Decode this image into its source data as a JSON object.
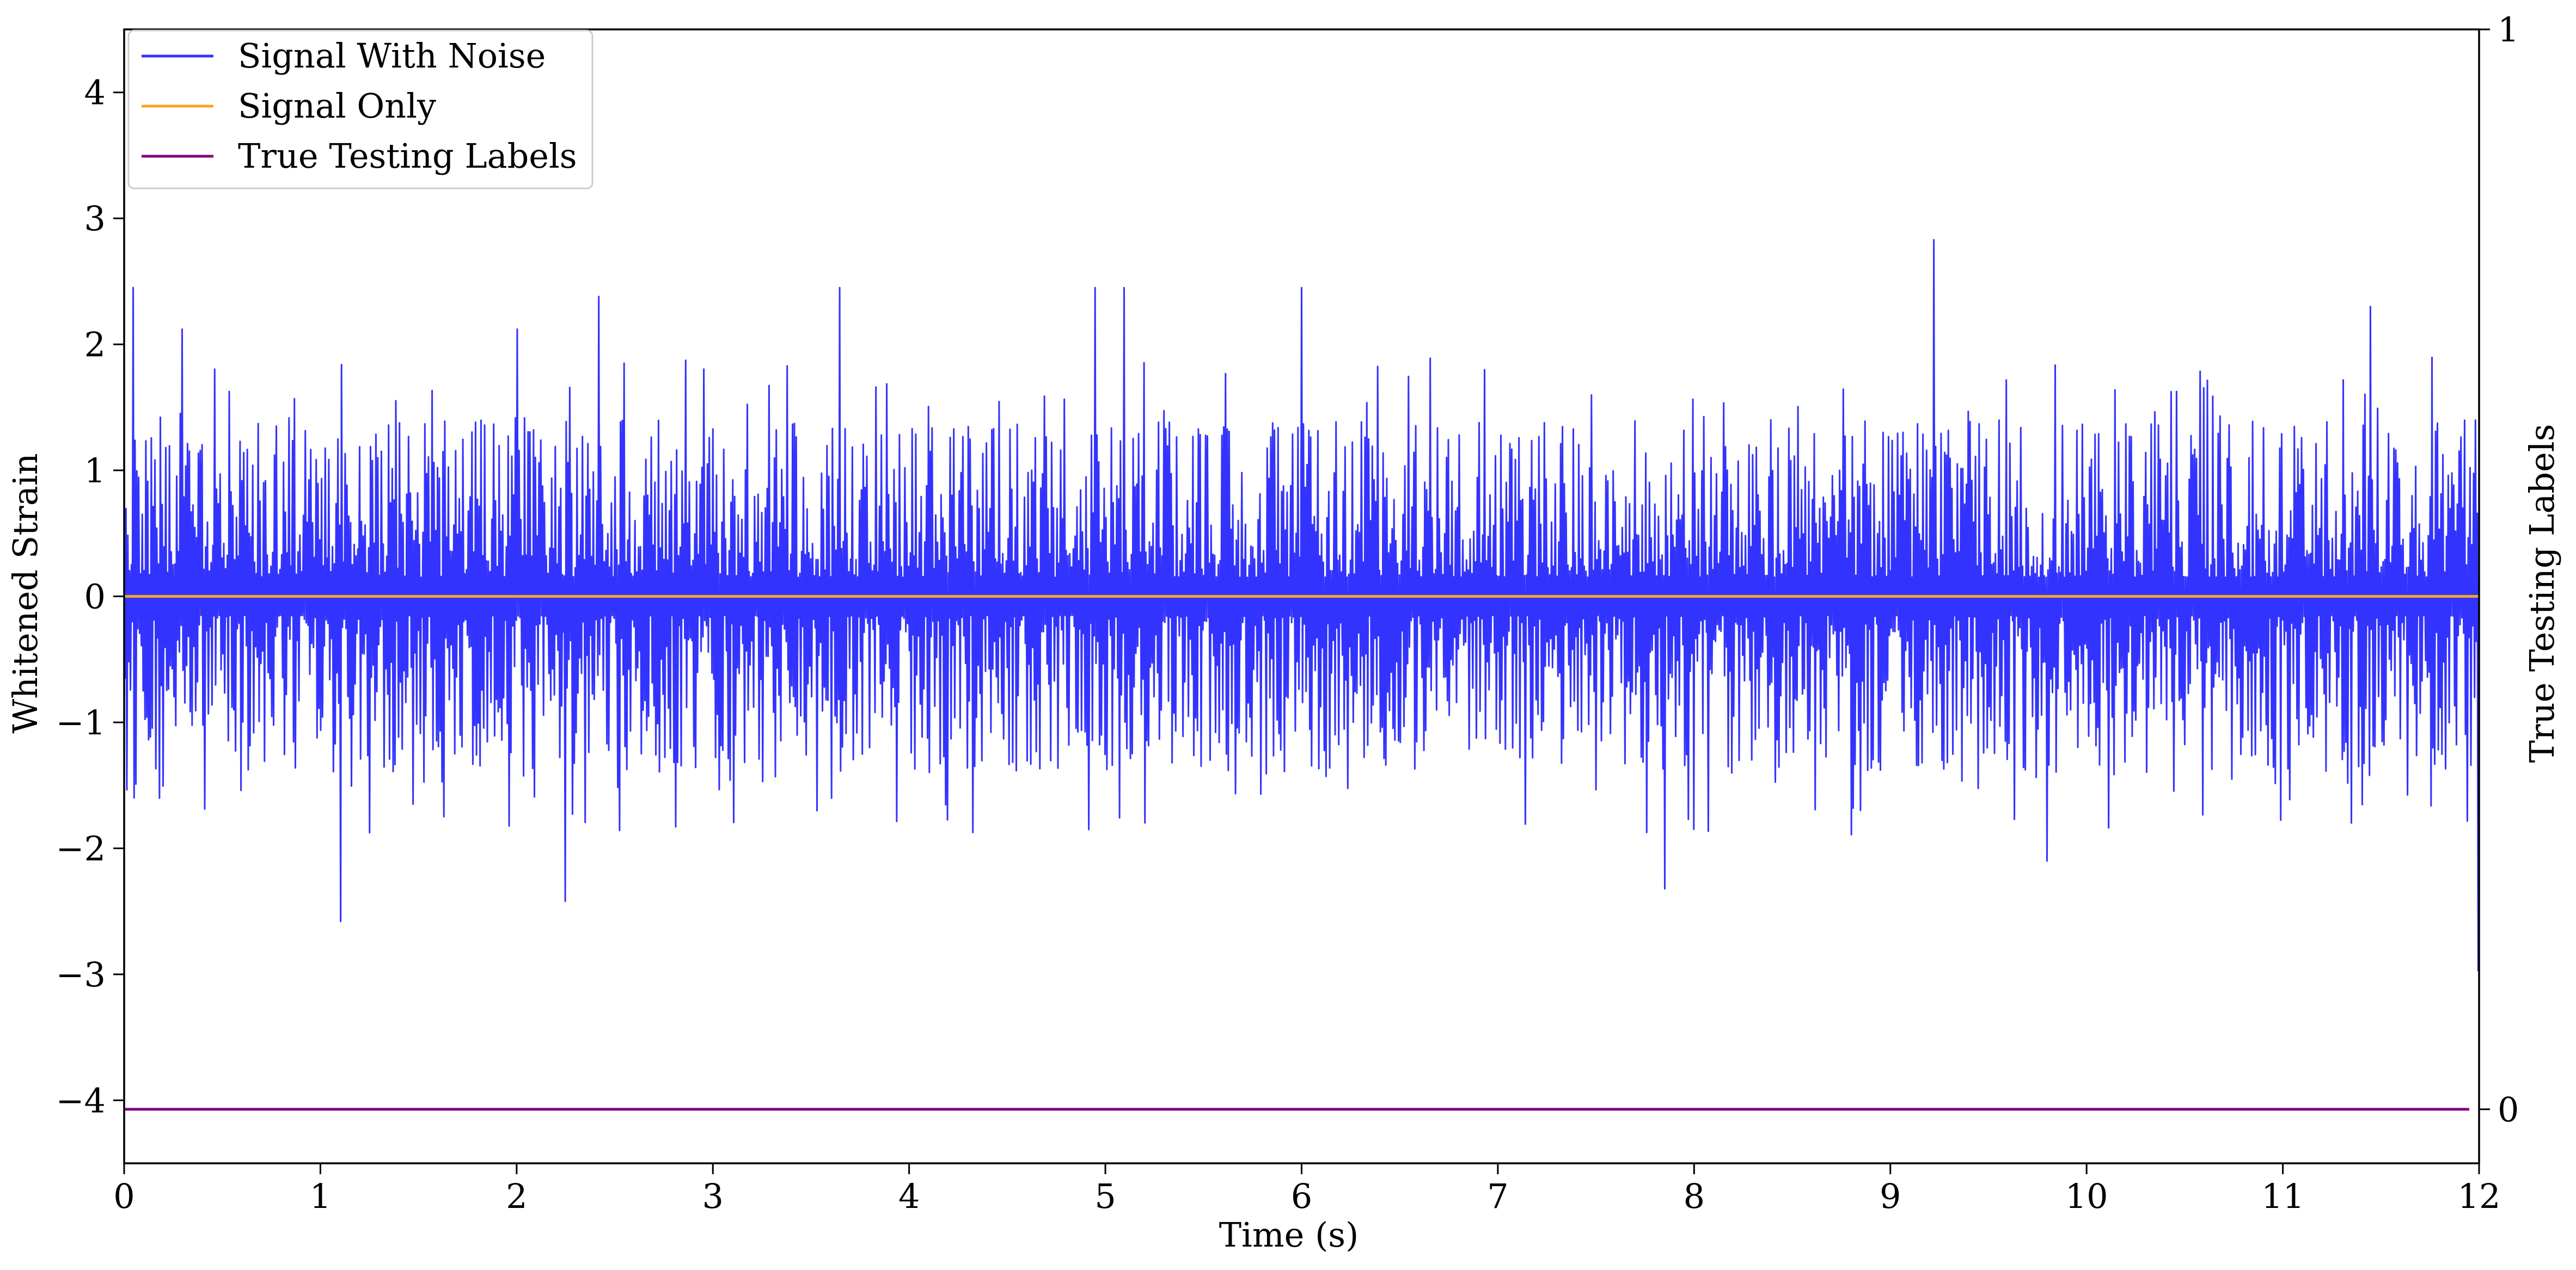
{
  "chart_data": {
    "type": "line",
    "xlabel": "Time (s)",
    "ylabel": "Whitened Strain",
    "y2label": "True Testing Labels",
    "xlim": [
      0,
      12
    ],
    "ylim": [
      -4.5,
      4.5
    ],
    "y2lim": [
      -0.05,
      1
    ],
    "x_ticks": [
      0,
      1,
      2,
      3,
      4,
      5,
      6,
      7,
      8,
      9,
      10,
      11,
      12
    ],
    "y_ticks": [
      -4,
      -3,
      -2,
      -1,
      0,
      1,
      2,
      3,
      4
    ],
    "y2_ticks": [
      0,
      1
    ],
    "grid": false,
    "legend_position": "top-left",
    "colors": {
      "signal_with_noise": "#3333ff",
      "signal_only": "#f5a623",
      "true_testing_labels": "#800080"
    },
    "series": [
      {
        "name": "Signal With Noise",
        "axis": "left",
        "envelope_description": "dense noise, mostly within about -1.2 to 1.5",
        "notable_peaks": [
          {
            "x": 0.05,
            "y": 2.45
          },
          {
            "x": 0.3,
            "y": 2.12
          },
          {
            "x": 1.1,
            "y": -2.58
          },
          {
            "x": 2.0,
            "y": 2.12
          },
          {
            "x": 2.25,
            "y": -2.42
          },
          {
            "x": 2.42,
            "y": 2.38
          },
          {
            "x": 3.65,
            "y": 2.45
          },
          {
            "x": 4.95,
            "y": 2.45
          },
          {
            "x": 5.1,
            "y": 2.45
          },
          {
            "x": 6.0,
            "y": 2.45
          },
          {
            "x": 7.85,
            "y": -2.32
          },
          {
            "x": 9.22,
            "y": 2.83
          },
          {
            "x": 9.8,
            "y": -2.1
          },
          {
            "x": 11.45,
            "y": 2.3
          },
          {
            "x": 12.0,
            "y": -2.97
          }
        ]
      },
      {
        "name": "Signal Only",
        "axis": "left",
        "x": [
          0,
          12
        ],
        "y": [
          0,
          0
        ]
      },
      {
        "name": "True Testing Labels",
        "axis": "right",
        "x": [
          0,
          11.95
        ],
        "y": [
          0,
          0
        ]
      }
    ]
  }
}
